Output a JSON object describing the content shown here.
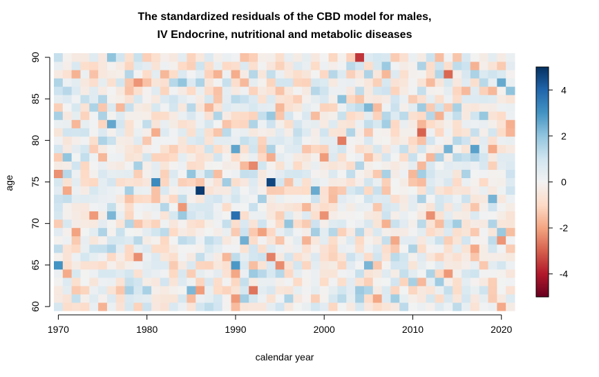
{
  "chart_data": {
    "type": "heatmap",
    "title_line1": "The standardized residuals of the CBD model for males,",
    "title_line2": "IV Endocrine, nutritional and metabolic diseases",
    "xlabel": "calendar year",
    "ylabel": "age",
    "x_range": [
      1970,
      2021
    ],
    "y_range": [
      60,
      90
    ],
    "x_ticks": [
      1970,
      1980,
      1990,
      2000,
      2010,
      2020
    ],
    "y_ticks": [
      60,
      65,
      70,
      75,
      80,
      85,
      90
    ],
    "colorbar": {
      "range": [
        -5,
        5
      ],
      "ticks": [
        4,
        2,
        0,
        -2,
        -4
      ],
      "palette": [
        "#67001f",
        "#b2182b",
        "#d6604d",
        "#f4a582",
        "#fddbc7",
        "#f2f2f2",
        "#d1e5f0",
        "#92c5de",
        "#4393c3",
        "#2166ac",
        "#053061"
      ]
    },
    "highlights": [
      {
        "year": 1986,
        "age": 74,
        "value": 4.8
      },
      {
        "year": 1994,
        "age": 75,
        "value": 4.6
      },
      {
        "year": 1990,
        "age": 71,
        "value": 3.8
      },
      {
        "year": 1981,
        "age": 75,
        "value": 3.2
      },
      {
        "year": 1970,
        "age": 65,
        "value": 3.0
      },
      {
        "year": 2004,
        "age": 90,
        "value": -3.6
      },
      {
        "year": 2014,
        "age": 88,
        "value": -2.9
      },
      {
        "year": 1992,
        "age": 62,
        "value": -2.7
      }
    ]
  }
}
